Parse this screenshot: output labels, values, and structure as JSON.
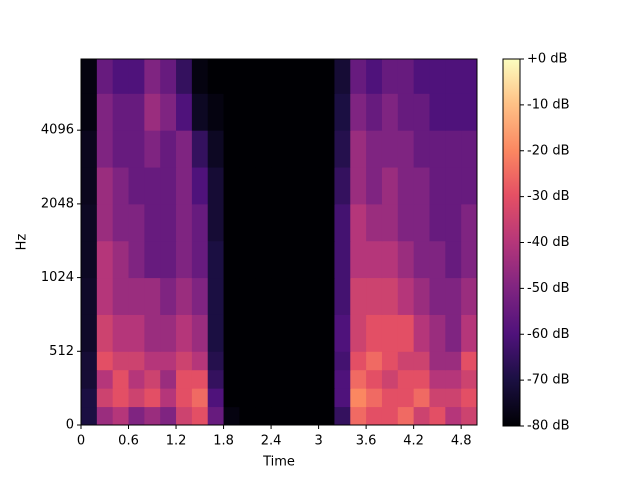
{
  "chart_data": {
    "type": "spectrogram",
    "xlabel": "Time",
    "ylabel": "Hz",
    "xlim": [
      0,
      5.0
    ],
    "ylim": [
      0,
      8000
    ],
    "yscale": "symlog",
    "linthresh": 512,
    "xticks": [
      0,
      0.6,
      1.2,
      1.8,
      2.4,
      3,
      3.6,
      4.2,
      4.8
    ],
    "yticks": [
      0,
      512,
      1024,
      2048,
      4096
    ],
    "colormap": "magma",
    "clim": [
      -80,
      0
    ],
    "cticks": [
      {
        "value": 0,
        "label": "+0 dB"
      },
      {
        "value": -10,
        "label": "-10 dB"
      },
      {
        "value": -20,
        "label": "-20 dB"
      },
      {
        "value": -30,
        "label": "-30 dB"
      },
      {
        "value": -40,
        "label": "-40 dB"
      },
      {
        "value": -50,
        "label": "-50 dB"
      },
      {
        "value": -60,
        "label": "-60 dB"
      },
      {
        "value": -70,
        "label": "-70 dB"
      },
      {
        "value": -80,
        "label": "-80 dB"
      }
    ],
    "x_bins": [
      0,
      0.2,
      0.4,
      0.6,
      0.8,
      1.0,
      1.2,
      1.4,
      1.6,
      1.8,
      2.0,
      2.2,
      2.4,
      2.6,
      2.8,
      3.0,
      3.2,
      3.4,
      3.6,
      3.8,
      4.0,
      4.2,
      4.4,
      4.6,
      4.8,
      5.0
    ],
    "y_bins": [
      0,
      128,
      256,
      384,
      512,
      724,
      1024,
      1448,
      2048,
      2896,
      4096,
      5793,
      8000
    ],
    "values": [
      [
        -70,
        -45,
        -40,
        -50,
        -45,
        -50,
        -35,
        -30,
        -55,
        -78,
        -80,
        -80,
        -80,
        -80,
        -80,
        -80,
        -65,
        -25,
        -30,
        -30,
        -25,
        -35,
        -30,
        -40,
        -35
      ],
      [
        -70,
        -35,
        -30,
        -35,
        -30,
        -40,
        -30,
        -25,
        -60,
        -80,
        -80,
        -80,
        -80,
        -80,
        -80,
        -80,
        -60,
        -20,
        -25,
        -30,
        -30,
        -25,
        -35,
        -35,
        -30
      ],
      [
        -72,
        -40,
        -30,
        -40,
        -35,
        -45,
        -30,
        -30,
        -65,
        -80,
        -80,
        -80,
        -80,
        -80,
        -80,
        -80,
        -60,
        -25,
        -30,
        -35,
        -30,
        -30,
        -40,
        -40,
        -35
      ],
      [
        -72,
        -30,
        -35,
        -35,
        -40,
        -40,
        -35,
        -40,
        -68,
        -80,
        -80,
        -80,
        -80,
        -80,
        -80,
        -80,
        -62,
        -30,
        -25,
        -30,
        -35,
        -35,
        -45,
        -45,
        -30
      ],
      [
        -74,
        -35,
        -40,
        -40,
        -45,
        -45,
        -40,
        -45,
        -70,
        -80,
        -80,
        -80,
        -80,
        -80,
        -80,
        -80,
        -60,
        -35,
        -30,
        -30,
        -30,
        -40,
        -45,
        -50,
        -40
      ],
      [
        -74,
        -40,
        -45,
        -45,
        -45,
        -50,
        -45,
        -50,
        -70,
        -80,
        -80,
        -80,
        -80,
        -80,
        -80,
        -80,
        -62,
        -35,
        -35,
        -35,
        -40,
        -45,
        -50,
        -50,
        -45
      ],
      [
        -75,
        -40,
        -45,
        -50,
        -55,
        -55,
        -50,
        -55,
        -70,
        -80,
        -80,
        -80,
        -80,
        -80,
        -80,
        -80,
        -62,
        -40,
        -40,
        -40,
        -45,
        -50,
        -50,
        -55,
        -50
      ],
      [
        -75,
        -45,
        -50,
        -50,
        -55,
        -55,
        -50,
        -55,
        -72,
        -80,
        -80,
        -80,
        -80,
        -80,
        -80,
        -80,
        -62,
        -40,
        -45,
        -45,
        -50,
        -50,
        -55,
        -55,
        -50
      ],
      [
        -76,
        -45,
        -50,
        -55,
        -55,
        -55,
        -50,
        -60,
        -72,
        -80,
        -80,
        -80,
        -80,
        -80,
        -80,
        -80,
        -65,
        -45,
        -50,
        -45,
        -50,
        -50,
        -55,
        -55,
        -55
      ],
      [
        -76,
        -50,
        -55,
        -55,
        -50,
        -55,
        -50,
        -65,
        -75,
        -80,
        -80,
        -80,
        -80,
        -80,
        -80,
        -80,
        -68,
        -45,
        -50,
        -50,
        -50,
        -55,
        -55,
        -55,
        -55
      ],
      [
        -78,
        -50,
        -55,
        -55,
        -45,
        -50,
        -60,
        -75,
        -78,
        -80,
        -80,
        -80,
        -80,
        -80,
        -80,
        -80,
        -70,
        -50,
        -55,
        -50,
        -55,
        -55,
        -60,
        -60,
        -60
      ],
      [
        -78,
        -55,
        -60,
        -60,
        -50,
        -55,
        -65,
        -78,
        -80,
        -80,
        -80,
        -80,
        -80,
        -80,
        -80,
        -80,
        -72,
        -55,
        -60,
        -55,
        -55,
        -60,
        -60,
        -60,
        -60
      ]
    ]
  }
}
